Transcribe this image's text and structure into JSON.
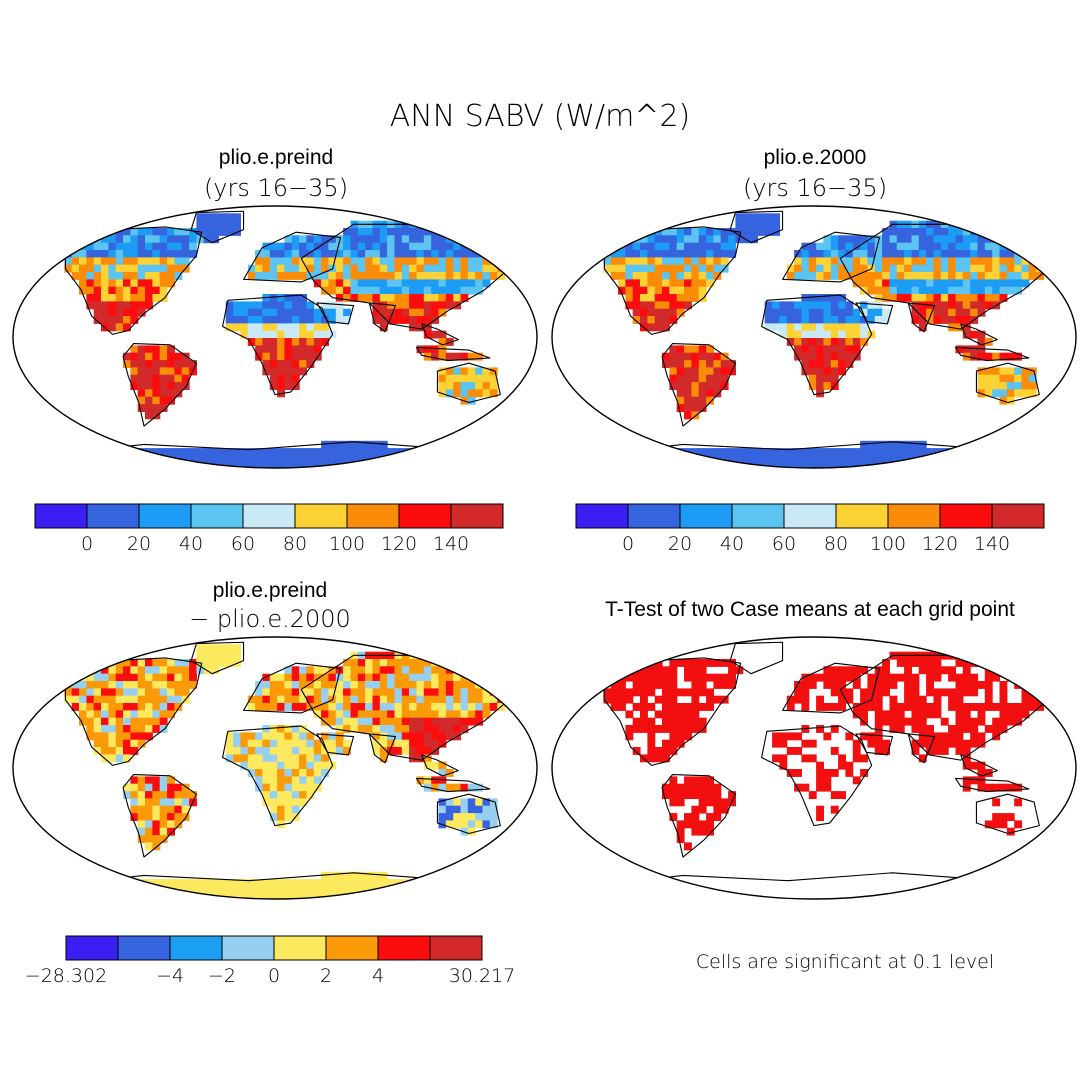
{
  "title": "ANN SABV (W/m^2)",
  "panels": [
    {
      "name": "plio.e.preind",
      "subtitle": "(yrs 16−35)",
      "kind": "absolute"
    },
    {
      "name": "plio.e.2000",
      "subtitle": "(yrs 16−35)",
      "kind": "absolute"
    },
    {
      "name": "plio.e.preind",
      "subtitle": "− plio.e.2000",
      "kind": "difference"
    },
    {
      "name": "T-Test of two Case means at each grid point",
      "subtitle": "",
      "kind": "significance"
    }
  ],
  "colorbars": {
    "absolute": {
      "colors": [
        "#3a1ff5",
        "#3663de",
        "#1c9cf4",
        "#5cc4f0",
        "#c9e9f7",
        "#fdd235",
        "#fb8c08",
        "#fb0d0d",
        "#d22a2a"
      ],
      "labels": [
        "0",
        "20",
        "40",
        "60",
        "80",
        "100",
        "120",
        "140"
      ]
    },
    "difference": {
      "colors": [
        "#3a1ff5",
        "#3663de",
        "#1ca0f4",
        "#96cff0",
        "#fde95e",
        "#fb9a08",
        "#fb0d0d",
        "#d22a2a"
      ],
      "labels": [
        "−28.302",
        "−4",
        "−2",
        "0",
        "2",
        "4",
        "30.217"
      ]
    }
  },
  "significance_note": "Cells are significant at 0.1 level",
  "significance_color": "#f20f0f"
}
